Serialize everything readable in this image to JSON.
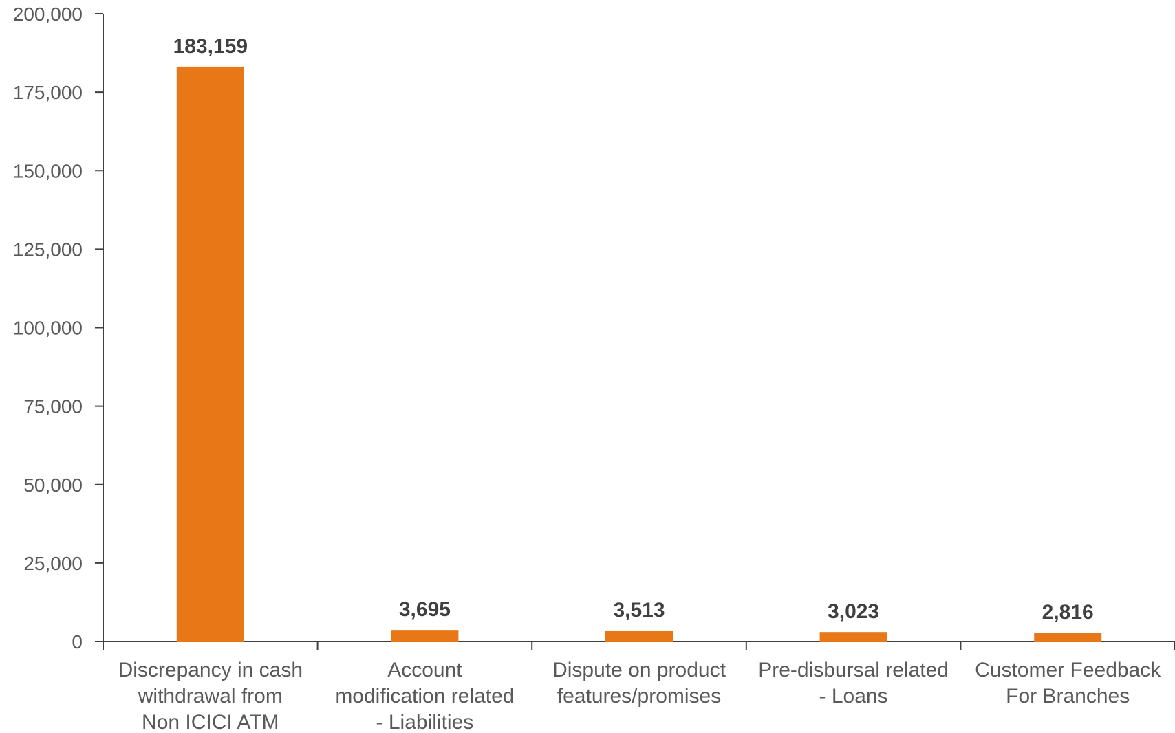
{
  "chart_data": {
    "type": "bar",
    "categories": [
      [
        "Discrepancy in cash",
        "withdrawal from",
        "Non ICICI ATM"
      ],
      [
        "Account",
        "modification related",
        "- Liabilities"
      ],
      [
        "Dispute on product",
        "features/promises"
      ],
      [
        "Pre-disbursal related",
        "- Loans"
      ],
      [
        "Customer Feedback",
        "For Branches"
      ]
    ],
    "values": [
      183159,
      3695,
      3513,
      3023,
      2816
    ],
    "data_labels": [
      "183,159",
      "3,695",
      "3,513",
      "3,023",
      "2,816"
    ],
    "ylim": [
      0,
      200000
    ],
    "yticks": [
      0,
      25000,
      50000,
      75000,
      100000,
      125000,
      150000,
      175000,
      200000
    ],
    "ytick_labels": [
      "0",
      "25,000",
      "50,000",
      "75,000",
      "100,000",
      "125,000",
      "150,000",
      "175,000",
      "200,000"
    ],
    "grid": false,
    "legend": "none",
    "colors": {
      "bar": "#E87817",
      "axis": "#404040"
    }
  }
}
